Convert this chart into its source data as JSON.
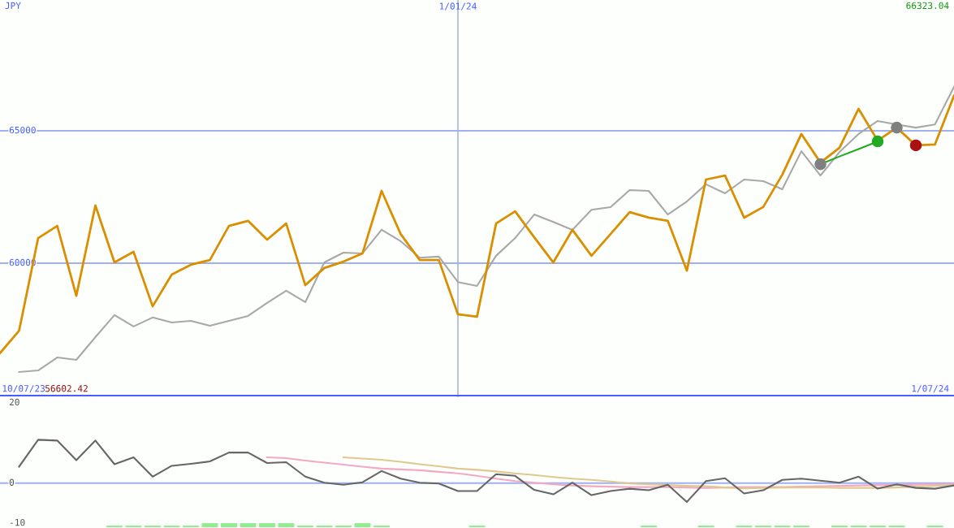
{
  "chart_data": [
    {
      "type": "line",
      "legend": false,
      "grid": true,
      "categories": [
        null,
        null,
        null,
        null,
        null,
        null,
        null,
        null,
        null,
        null,
        null,
        null,
        null,
        null,
        null,
        null,
        null,
        null,
        null,
        null,
        null,
        null,
        null,
        null,
        "1/01/24",
        null,
        null,
        null,
        null,
        null,
        null,
        null,
        null,
        null,
        null,
        null,
        null,
        null,
        null,
        null,
        null,
        null,
        null,
        null,
        null,
        null,
        null,
        null,
        null,
        null,
        null
      ],
      "ylim": [
        55000,
        69940
      ],
      "yticks": [
        60000,
        65000
      ],
      "series": [
        {
          "color": "#a8a8a8",
          "values": [
            null,
            55890,
            55950,
            56440,
            56350,
            57210,
            58040,
            57610,
            57950,
            57760,
            57820,
            57640,
            57820,
            58010,
            58500,
            58960,
            58530,
            60030,
            60400,
            60370,
            61260,
            60830,
            60210,
            60250,
            59290,
            59140,
            60280,
            60950,
            61840,
            61560,
            61260,
            62020,
            62120,
            62760,
            62730,
            61840,
            62330,
            62980,
            62640,
            63160,
            63100,
            62790,
            64230,
            63310,
            64200,
            64880,
            65370,
            65240,
            65120,
            65240,
            66660
          ]
        },
        {
          "color": "#d98f00",
          "values": [
            56602.42,
            57450,
            60950,
            61410,
            58770,
            62180,
            60030,
            60430,
            58370,
            59570,
            59940,
            60120,
            61410,
            61600,
            60890,
            61500,
            59170,
            59820,
            60060,
            60370,
            62730,
            61100,
            60120,
            60120,
            58070,
            57980,
            61500,
            61960,
            60980,
            60030,
            61260,
            60280,
            61100,
            61930,
            61720,
            61600,
            59720,
            63160,
            63310,
            61720,
            62120,
            63340,
            64880,
            63800,
            64360,
            65830,
            64630,
            65120,
            64450,
            64480,
            66323.04
          ]
        },
        {
          "color": "#22aa22",
          "values": [
            null,
            null,
            null,
            null,
            null,
            null,
            null,
            null,
            null,
            null,
            null,
            null,
            null,
            null,
            null,
            null,
            null,
            null,
            null,
            null,
            null,
            null,
            null,
            null,
            null,
            null,
            null,
            null,
            null,
            null,
            null,
            null,
            null,
            null,
            null,
            null,
            null,
            null,
            null,
            null,
            null,
            null,
            null,
            63740,
            64030,
            64310,
            64600,
            null,
            null,
            null,
            null
          ]
        },
        {
          "type": "scatter",
          "marker": "circle",
          "colors": [
            null,
            null,
            null,
            null,
            null,
            null,
            null,
            null,
            null,
            null,
            null,
            null,
            null,
            null,
            null,
            null,
            null,
            null,
            null,
            null,
            null,
            null,
            null,
            null,
            null,
            null,
            null,
            null,
            null,
            null,
            null,
            null,
            null,
            null,
            null,
            null,
            null,
            null,
            null,
            null,
            null,
            null,
            null,
            "#808080",
            null,
            null,
            "#22aa22",
            "#808080",
            "#aa1111",
            null,
            null
          ],
          "values": [
            null,
            null,
            null,
            null,
            null,
            null,
            null,
            null,
            null,
            null,
            null,
            null,
            null,
            null,
            null,
            null,
            null,
            null,
            null,
            null,
            null,
            null,
            null,
            null,
            null,
            null,
            null,
            null,
            null,
            null,
            null,
            null,
            null,
            null,
            null,
            null,
            null,
            null,
            null,
            null,
            null,
            null,
            null,
            63740,
            null,
            null,
            64600,
            65120,
            64450,
            null,
            null
          ]
        }
      ],
      "annotations": [
        "JPY",
        "66323.04",
        "10/07/23",
        "56602.42",
        "1/07/24"
      ]
    },
    {
      "type": "line",
      "legend": false,
      "grid": false,
      "tick_labels": "y",
      "categories": [
        null,
        null,
        null,
        null,
        null,
        null,
        null,
        null,
        null,
        null,
        null,
        null,
        null,
        null,
        null,
        null,
        null,
        null,
        null,
        null,
        null,
        null,
        null,
        null,
        null,
        null,
        null,
        null,
        null,
        null,
        null,
        null,
        null,
        null,
        null,
        null,
        null,
        null,
        null,
        null,
        null,
        null,
        null,
        null,
        null,
        null,
        null,
        null,
        null,
        null,
        null
      ],
      "ylim": [
        -11.2,
        21.4
      ],
      "yticks": [
        20,
        0,
        -10
      ],
      "series": [
        {
          "type": "bar",
          "color": "#90ee90",
          "base": [
            null,
            null,
            null,
            null,
            null,
            null,
            -11,
            -11,
            -11,
            -11,
            -11,
            -11,
            -11,
            -11,
            -11,
            -11,
            -11,
            -11,
            -11,
            -11,
            -11,
            null,
            null,
            null,
            null,
            -11,
            null,
            null,
            null,
            null,
            null,
            null,
            null,
            null,
            -11,
            null,
            null,
            -11,
            null,
            -11,
            -11,
            -11,
            -11,
            null,
            -11,
            -11,
            -11,
            -11,
            null,
            -11,
            null
          ],
          "values": [
            null,
            null,
            null,
            null,
            null,
            null,
            0.4,
            0.4,
            0.4,
            0.4,
            0.4,
            1,
            1,
            1,
            1,
            1,
            0.4,
            0.4,
            0.4,
            1,
            0.4,
            null,
            null,
            null,
            null,
            0.4,
            null,
            null,
            null,
            null,
            null,
            null,
            null,
            null,
            0.4,
            null,
            null,
            0.4,
            null,
            0.4,
            0.4,
            0.4,
            0.4,
            null,
            0.4,
            0.4,
            0.4,
            0.4,
            null,
            0.4,
            null
          ]
        },
        {
          "color": "#f4a8c4",
          "values": [
            null,
            null,
            null,
            null,
            null,
            null,
            null,
            null,
            null,
            null,
            null,
            null,
            null,
            null,
            6.4,
            6.2,
            5.6,
            5.1,
            4.6,
            4.1,
            3.6,
            3.4,
            3.2,
            2.8,
            2.4,
            1.8,
            1.1,
            0.5,
            0.1,
            -0.3,
            -0.6,
            -0.8,
            -0.9,
            -1.0,
            -1.0,
            -1.0,
            -1.1,
            -1.2,
            -1.1,
            -1.0,
            -1.0,
            -1.0,
            -0.9,
            -0.8,
            -0.7,
            -0.6,
            -0.5,
            -0.5,
            -0.4,
            -0.3,
            -0.2
          ]
        },
        {
          "color": "#e0c890",
          "values": [
            null,
            null,
            null,
            null,
            null,
            null,
            null,
            null,
            null,
            null,
            null,
            null,
            null,
            null,
            null,
            null,
            null,
            null,
            6.4,
            6.1,
            5.8,
            5.3,
            4.7,
            4.2,
            3.6,
            3.3,
            2.9,
            2.4,
            2.0,
            1.5,
            1.1,
            0.8,
            0.4,
            -0.1,
            -0.3,
            -0.5,
            -0.7,
            -0.8,
            -1.1,
            -1.3,
            -1.2,
            -1.1,
            -1.1,
            -1.1,
            -1.2,
            -1.2,
            -1.2,
            -1.1,
            -0.9,
            -0.7,
            -0.5
          ]
        },
        {
          "color": "#666666",
          "values": [
            null,
            4.1,
            10.8,
            10.6,
            5.7,
            10.6,
            4.7,
            6.4,
            1.6,
            4.3,
            4.8,
            5.4,
            7.6,
            7.6,
            5.0,
            5.2,
            1.6,
            0.1,
            -0.4,
            0.2,
            3.0,
            1.1,
            0.1,
            -0.1,
            -2.0,
            -2.0,
            2.2,
            1.8,
            -1.7,
            -2.8,
            0.1,
            -3.0,
            -2.0,
            -1.4,
            -1.8,
            -0.4,
            -4.7,
            0.5,
            1.2,
            -2.6,
            -1.8,
            0.8,
            1.1,
            0.6,
            0.1,
            1.6,
            -1.4,
            -0.3,
            -1.2,
            -1.4,
            -0.6
          ]
        }
      ],
      "ref_lines": [
        {
          "axis": "y",
          "value": 0,
          "color": "#a0b0f0"
        }
      ]
    }
  ]
}
